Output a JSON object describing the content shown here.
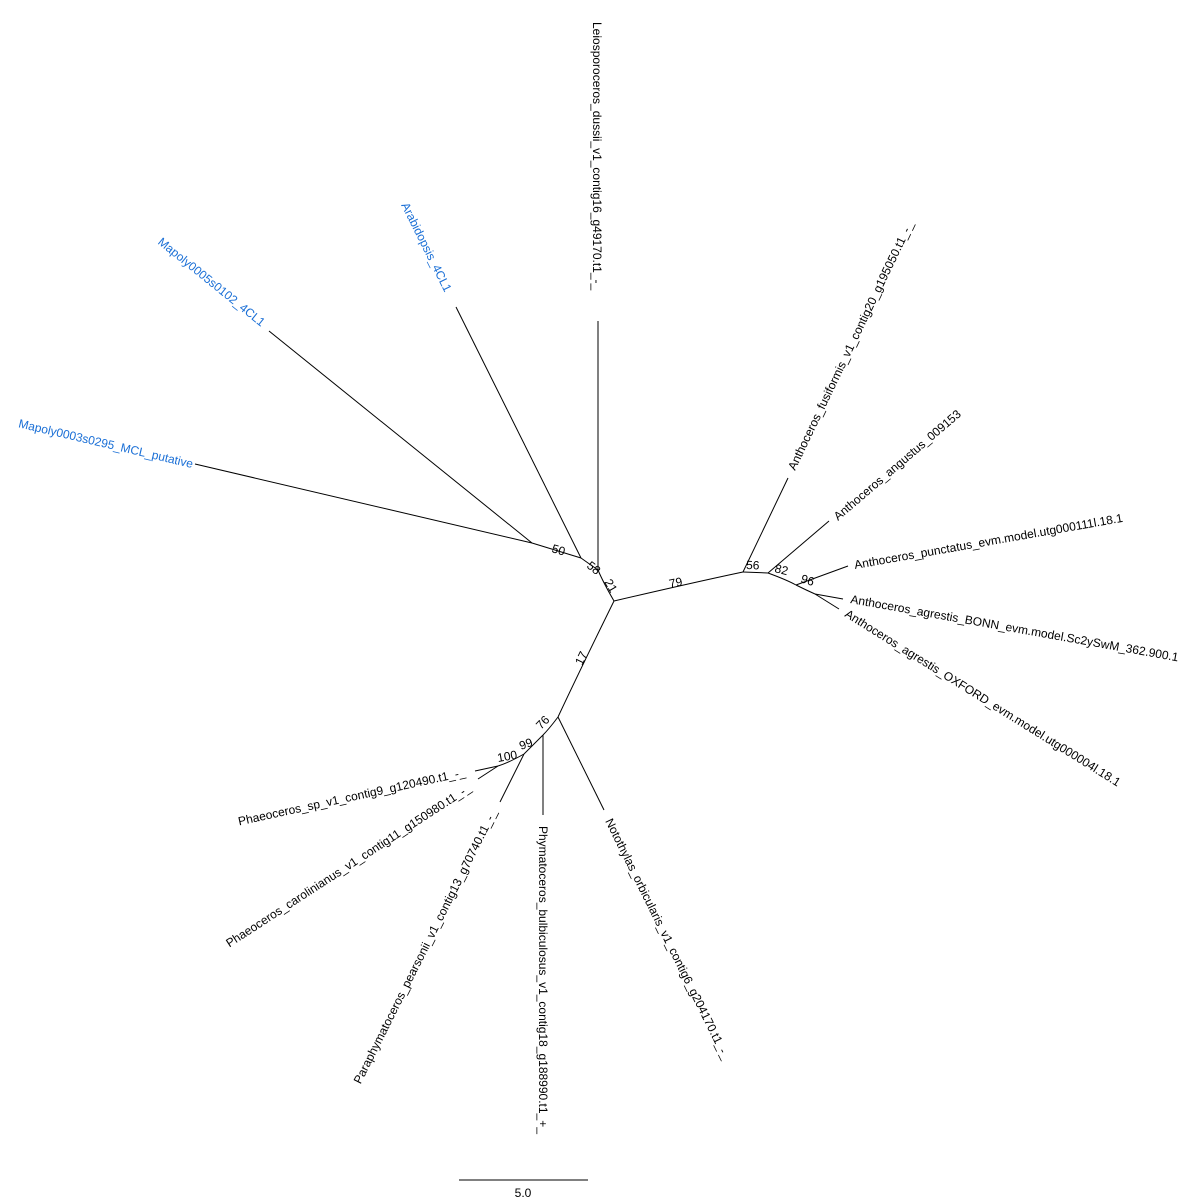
{
  "tree": {
    "highlight_color": "#1a6fd6",
    "leaves": [
      {
        "id": "leiosporoceros",
        "label": "Leiosporoceros_dussii_v1_contig16_g49170.t1_-_",
        "highlighted": false
      },
      {
        "id": "arabidopsis",
        "label": "Arabidopsis_4CL1",
        "highlighted": true
      },
      {
        "id": "mapoly0005",
        "label": "Mapoly0005s0102_4CL1",
        "highlighted": true
      },
      {
        "id": "mapoly0003",
        "label": "Mapoly0003s0295_MCL_putative",
        "highlighted": true
      },
      {
        "id": "fusiformis",
        "label": "Anthoceros_fusiformis_v1_contig20_g195050.t1_-_",
        "highlighted": false
      },
      {
        "id": "angustus",
        "label": "Anthoceros_angustus_009153",
        "highlighted": false
      },
      {
        "id": "punctatus",
        "label": "Anthoceros_punctatus_evm.model.utg000111l.18.1",
        "highlighted": false
      },
      {
        "id": "bonn",
        "label": "Anthoceros_agrestis_BONN_evm.model.Sc2ySwM_362.900.1",
        "highlighted": false
      },
      {
        "id": "oxford",
        "label": "Anthoceros_agrestis_OXFORD_evm.model.utg000004l.18.1",
        "highlighted": false
      },
      {
        "id": "phaeoceros_sp",
        "label": "Phaeoceros_sp_v1_contig9_g120490.t1_-_",
        "highlighted": false
      },
      {
        "id": "carolinianus",
        "label": "Phaeoceros_carolinianus_v1_contig11_g150980.t1_-_",
        "highlighted": false
      },
      {
        "id": "paraphymatoceros",
        "label": "Paraphymatoceros_pearsonii_v1_contig13_g70740.t1_-_",
        "highlighted": false
      },
      {
        "id": "phymatoceros",
        "label": "Phymatoceros_bulbiculosus_v1_contig18_g188990.t1_+_",
        "highlighted": false
      },
      {
        "id": "notothylas",
        "label": "Notothylas_orbicularis_v1_contig6_g204170.t1_-_",
        "highlighted": false
      }
    ],
    "support_values": [
      {
        "id": "s50",
        "value": "50"
      },
      {
        "id": "s58",
        "value": "58"
      },
      {
        "id": "s21",
        "value": "21"
      },
      {
        "id": "s79",
        "value": "79"
      },
      {
        "id": "s56",
        "value": "56"
      },
      {
        "id": "s82",
        "value": "82"
      },
      {
        "id": "s96",
        "value": "96"
      },
      {
        "id": "s17",
        "value": "17"
      },
      {
        "id": "s76",
        "value": "76"
      },
      {
        "id": "s99",
        "value": "99"
      },
      {
        "id": "s100",
        "value": "100"
      }
    ],
    "scale_bar": {
      "value": 5.0,
      "label": "5.0"
    }
  }
}
